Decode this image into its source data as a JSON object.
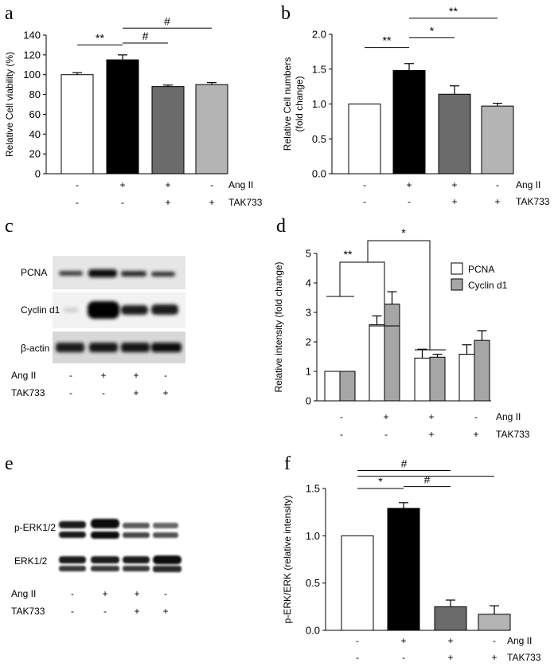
{
  "panels": {
    "a": "a",
    "b": "b",
    "c": "c",
    "d": "d",
    "e": "e",
    "f": "f"
  },
  "treatment_rows": [
    {
      "name": "Ang II",
      "signs": [
        "-",
        "+",
        "+",
        "-"
      ]
    },
    {
      "name": "TAK733",
      "signs": [
        "-",
        "-",
        "+",
        "+"
      ]
    }
  ],
  "chart_data": [
    {
      "id": "a",
      "type": "bar",
      "ylabel": "Relative Cell viability (%)",
      "ylim": [
        0,
        140
      ],
      "yticks": [
        "0",
        "20",
        "40",
        "60",
        "80",
        "100",
        "120",
        "140"
      ],
      "values": [
        100,
        115,
        88,
        90
      ],
      "errors": [
        2,
        5,
        1.5,
        2
      ],
      "colors": [
        "#ffffff",
        "#000000",
        "#6b6b6b",
        "#b4b4b4"
      ],
      "significance": [
        {
          "from": 0,
          "to": 1,
          "label": "**",
          "y": 130
        },
        {
          "from": 1,
          "to": 2,
          "label": "#",
          "y": 132
        },
        {
          "from": 1,
          "to": 3,
          "label": "#",
          "y": 147
        }
      ]
    },
    {
      "id": "b",
      "type": "bar",
      "ylabel": "Relative Cell numbers (fold change)",
      "ylim": [
        0,
        2.0
      ],
      "yticks": [
        "0.0",
        "0.5",
        "1.0",
        "1.5",
        "2.0"
      ],
      "values": [
        1.0,
        1.48,
        1.14,
        0.97
      ],
      "errors": [
        0,
        0.1,
        0.12,
        0.04
      ],
      "colors": [
        "#ffffff",
        "#000000",
        "#6b6b6b",
        "#b4b4b4"
      ],
      "significance": [
        {
          "from": 0,
          "to": 1,
          "label": "**",
          "y": 1.81
        },
        {
          "from": 1,
          "to": 2,
          "label": "*",
          "y": 1.95
        },
        {
          "from": 1,
          "to": 3,
          "label": "**",
          "y": 2.23
        }
      ]
    },
    {
      "id": "d",
      "type": "bar",
      "ylabel": "Relative intensity (fold change)",
      "ylim": [
        0,
        5
      ],
      "yticks": [
        "0",
        "1",
        "2",
        "3",
        "4",
        "5"
      ],
      "series": [
        {
          "name": "PCNA",
          "values": [
            1.0,
            2.58,
            1.45,
            1.58
          ],
          "errors": [
            0,
            0.3,
            0.3,
            0.32
          ],
          "color": "#ffffff"
        },
        {
          "name": "Cyclin d1",
          "values": [
            1.0,
            3.28,
            1.48,
            2.05
          ],
          "errors": [
            0,
            0.42,
            0.1,
            0.33
          ],
          "color": "#a6a6a6"
        }
      ],
      "significance_labels": [
        "**",
        "*"
      ]
    },
    {
      "id": "f",
      "type": "bar",
      "ylabel": "p-ERK/ERK (relative intensity)",
      "ylim": [
        0,
        1.5
      ],
      "yticks": [
        "0.0",
        "0.5",
        "1.0",
        "1.5"
      ],
      "values": [
        1.0,
        1.29,
        0.25,
        0.17
      ],
      "errors": [
        0,
        0.06,
        0.07,
        0.09
      ],
      "colors": [
        "#ffffff",
        "#000000",
        "#6b6b6b",
        "#b4b4b4"
      ],
      "significance": [
        {
          "from": 0,
          "to": 1,
          "label": "*",
          "y": 1.5
        },
        {
          "from": 1,
          "to": 2,
          "label": "#",
          "y": 1.52
        },
        {
          "from": 0,
          "to": 2,
          "label": "#",
          "y": 1.69
        },
        {
          "from": 0,
          "to": 3,
          "label": "",
          "y": 1.63
        }
      ]
    }
  ],
  "blots": {
    "c": {
      "bands": [
        "PCNA",
        "Cyclin d1",
        "β-actin"
      ]
    },
    "e": {
      "bands": [
        "p-ERK1/2",
        "ERK1/2"
      ]
    }
  }
}
